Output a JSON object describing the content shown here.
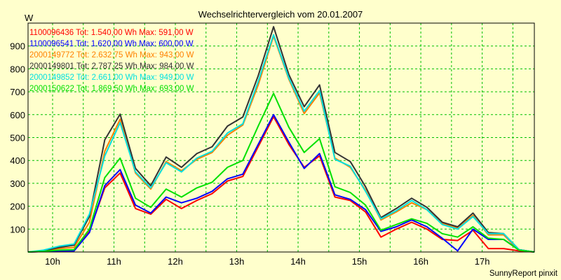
{
  "chart_data": {
    "type": "line",
    "title": "Wechselrichtervergleich vom 20.01.2007",
    "ylabel": "W",
    "xlabel": "",
    "footer": "SunnyReport pinxit",
    "ylim": [
      0,
      1000
    ],
    "xlim": [
      9.6,
      17.85
    ],
    "yticks": [
      100,
      200,
      300,
      400,
      500,
      600,
      700,
      800,
      900
    ],
    "xticks": [
      {
        "value": 10,
        "label": "10h"
      },
      {
        "value": 11,
        "label": "11h"
      },
      {
        "value": 12,
        "label": "12h"
      },
      {
        "value": 13,
        "label": "13h"
      },
      {
        "value": 14,
        "label": "14h"
      },
      {
        "value": 15,
        "label": "15h"
      },
      {
        "value": 16,
        "label": "16h"
      },
      {
        "value": 17,
        "label": "17h"
      }
    ],
    "grid": true,
    "legend_position": "top-left",
    "x": [
      9.6,
      9.85,
      10.1,
      10.35,
      10.6,
      10.85,
      11.1,
      11.35,
      11.6,
      11.85,
      12.1,
      12.35,
      12.6,
      12.85,
      13.1,
      13.35,
      13.6,
      13.85,
      14.1,
      14.35,
      14.6,
      14.85,
      15.1,
      15.35,
      15.6,
      15.85,
      16.1,
      16.35,
      16.6,
      16.85,
      17.1,
      17.35,
      17.6,
      17.85
    ],
    "series": [
      {
        "name": "1100096436 Tot: 1.540,00 Wh Max: 591,00 W",
        "color": "#ff0000",
        "values": [
          0,
          2,
          5,
          5,
          90,
          280,
          345,
          190,
          165,
          230,
          190,
          225,
          255,
          310,
          330,
          460,
          591,
          470,
          370,
          420,
          240,
          225,
          175,
          65,
          100,
          130,
          100,
          55,
          50,
          95,
          15,
          15,
          5,
          0
        ]
      },
      {
        "name": "1100096541 Tot: 1.620,00 Wh Max: 600,00 W",
        "color": "#0000ff",
        "values": [
          0,
          2,
          5,
          5,
          85,
          290,
          360,
          205,
          170,
          240,
          215,
          235,
          265,
          320,
          340,
          470,
          600,
          480,
          365,
          430,
          250,
          230,
          185,
          90,
          110,
          140,
          110,
          60,
          5,
          100,
          55,
          55,
          10,
          0
        ]
      },
      {
        "name": "2000149772 Tot: 2.632,75 Wh Max: 943,00 W",
        "color": "#ff8000",
        "values": [
          0,
          5,
          15,
          20,
          130,
          440,
          580,
          345,
          275,
          395,
          355,
          405,
          435,
          510,
          555,
          730,
          943,
          755,
          605,
          695,
          410,
          370,
          270,
          140,
          175,
          215,
          185,
          125,
          105,
          160,
          75,
          75,
          8,
          0
        ]
      },
      {
        "name": "2000149801 Tot: 2.787,25 Wh Max: 984,00 W",
        "color": "#333333",
        "values": [
          0,
          5,
          20,
          30,
          155,
          490,
          602,
          365,
          290,
          415,
          370,
          430,
          460,
          550,
          590,
          770,
          984,
          775,
          635,
          730,
          435,
          395,
          285,
          150,
          190,
          235,
          195,
          130,
          110,
          170,
          85,
          80,
          10,
          0
        ]
      },
      {
        "name": "2000149852 Tot: 2.661,00 Wh Max: 949,00 W",
        "color": "#00e0e0",
        "values": [
          0,
          8,
          25,
          35,
          165,
          420,
          565,
          350,
          280,
          390,
          350,
          410,
          440,
          520,
          560,
          745,
          949,
          760,
          615,
          705,
          405,
          375,
          265,
          145,
          180,
          225,
          185,
          120,
          100,
          155,
          80,
          80,
          10,
          0
        ]
      },
      {
        "name": "2000150622 Tot: 1.869,50 Wh Max: 693,00 W",
        "color": "#00e000",
        "values": [
          0,
          3,
          8,
          10,
          100,
          325,
          410,
          235,
          195,
          275,
          240,
          280,
          305,
          370,
          400,
          550,
          693,
          545,
          435,
          495,
          285,
          260,
          205,
          95,
          120,
          145,
          125,
          80,
          65,
          110,
          60,
          55,
          8,
          0
        ]
      }
    ]
  }
}
